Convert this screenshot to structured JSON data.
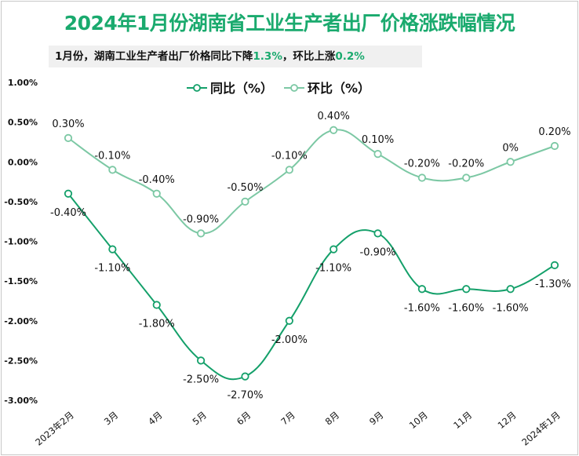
{
  "title": "2024年1月份湖南省工业生产者出厂价格涨跌幅情况",
  "subtitle": {
    "prefix": "1月份，湖南工业生产者出厂价格同比下降",
    "yoy_value": "1.3%",
    "middle": "，环比上涨",
    "mom_value": "0.2%"
  },
  "chart_data": {
    "type": "line",
    "title": "2024年1月份湖南省工业生产者出厂价格涨跌幅情况",
    "categories": [
      "2023年2月",
      "3月",
      "4月",
      "5月",
      "6月",
      "7月",
      "8月",
      "9月",
      "10月",
      "11月",
      "12月",
      "2024年1月"
    ],
    "ylim": [
      -3.0,
      1.0
    ],
    "yticks": [
      "1.00%",
      "0.50%",
      "0.00%",
      "-0.50%",
      "-1.00%",
      "-1.50%",
      "-2.00%",
      "-2.50%",
      "-3.00%"
    ],
    "ytick_values": [
      1.0,
      0.5,
      0.0,
      -0.5,
      -1.0,
      -1.5,
      -2.0,
      -2.5,
      -3.0
    ],
    "grid": false,
    "smooth": true,
    "legend_position": "top-center",
    "series": [
      {
        "name": "同比（%）",
        "color": "#14a06a",
        "values": [
          -0.4,
          -1.1,
          -1.8,
          -2.5,
          -2.7,
          -2.0,
          -1.1,
          -0.9,
          -1.6,
          -1.6,
          -1.6,
          -1.3
        ],
        "labels": [
          "-0.40%",
          "-1.10%",
          "-1.80%",
          "-2.50%",
          "-2.70%",
          "-2.00%",
          "-1.10%",
          "-0.90%",
          "-1.60%",
          "-1.60%",
          "-1.60%",
          "-1.30%"
        ]
      },
      {
        "name": "环比（%）",
        "color": "#7cc8a4",
        "values": [
          0.3,
          -0.1,
          -0.4,
          -0.9,
          -0.5,
          -0.1,
          0.4,
          0.1,
          -0.2,
          -0.2,
          0,
          0.2
        ],
        "labels": [
          "0.30%",
          "-0.10%",
          "-0.40%",
          "-0.90%",
          "-0.50%",
          "-0.10%",
          "0.40%",
          "0.10%",
          "-0.20%",
          "-0.20%",
          "0%",
          "0.20%"
        ]
      }
    ]
  }
}
